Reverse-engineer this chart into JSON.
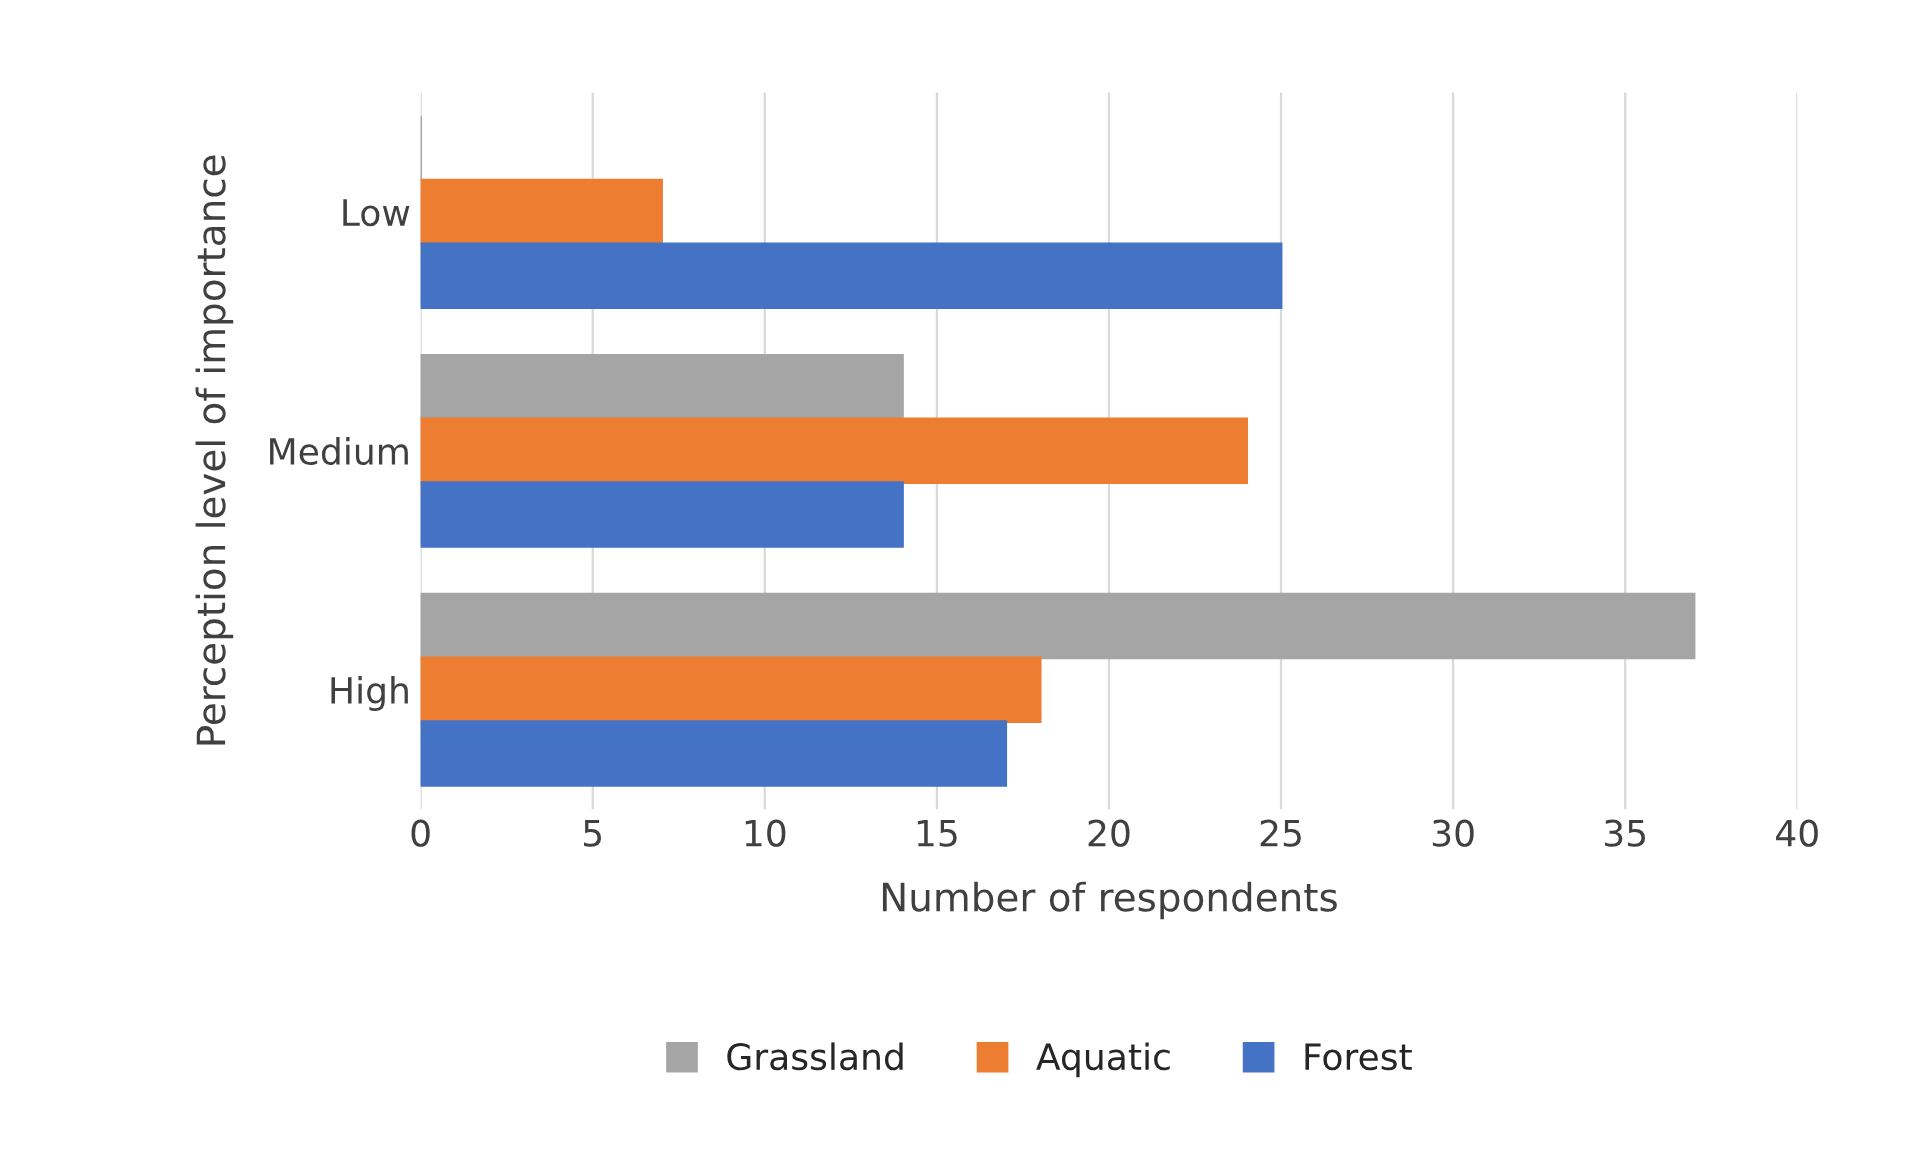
{
  "chart_data": {
    "type": "bar",
    "orientation": "horizontal",
    "xlabel": "Number of respondents",
    "ylabel": "Perception level of importance",
    "categories": [
      "Low",
      "Medium",
      "High"
    ],
    "series": [
      {
        "name": "Grassland",
        "color": "#a5a5a5",
        "values": [
          0,
          14,
          37
        ]
      },
      {
        "name": "Aquatic",
        "color": "#ed7d31",
        "values": [
          7,
          24,
          18
        ]
      },
      {
        "name": "Forest",
        "color": "#4472c4",
        "values": [
          25,
          14,
          17
        ]
      }
    ],
    "xlim": [
      0,
      40
    ],
    "xticks": [
      0,
      5,
      10,
      15,
      20,
      25,
      30,
      35,
      40
    ],
    "grid": "x",
    "legend": "bottom"
  }
}
